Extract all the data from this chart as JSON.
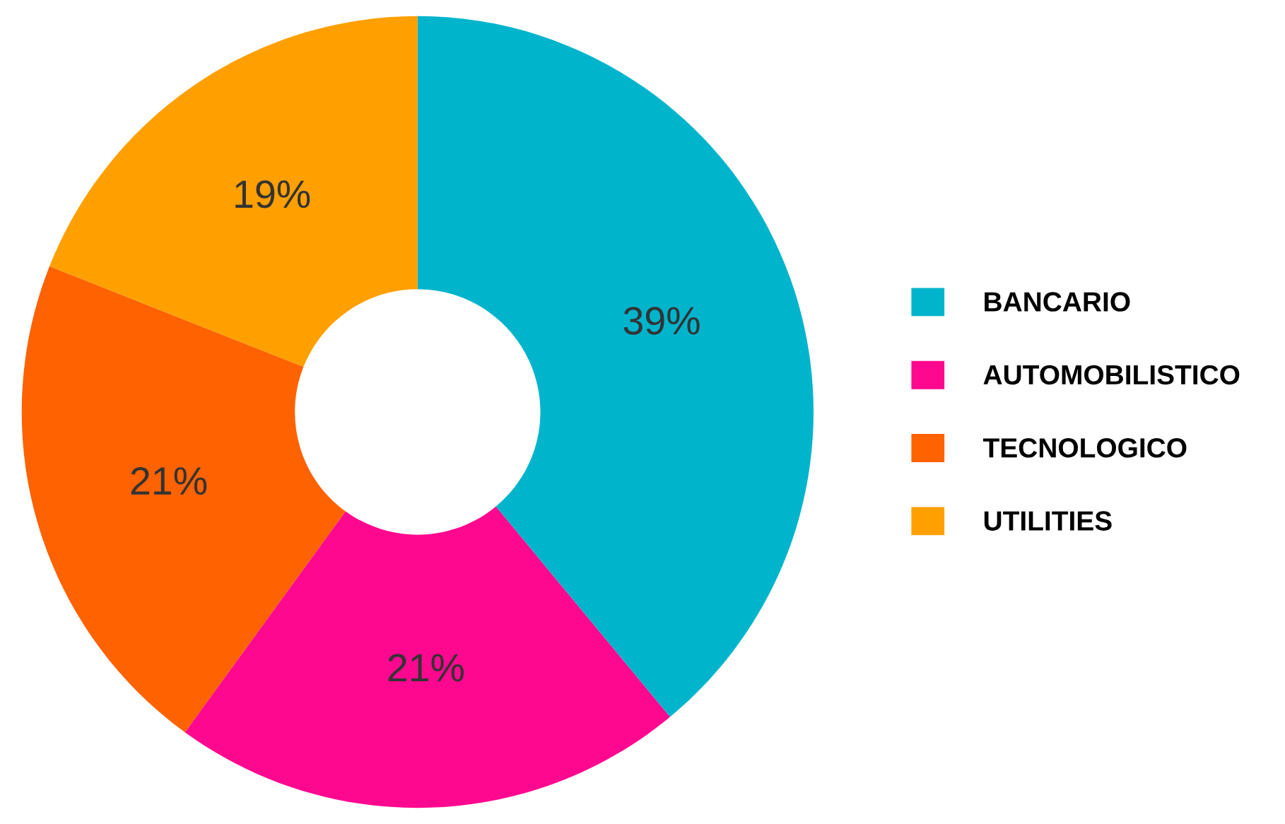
{
  "chart_data": {
    "type": "donut",
    "categories": [
      "BANCARIO",
      "AUTOMOBILISTICO",
      "TECNOLOGICO",
      "UTILITIES"
    ],
    "values": [
      39,
      21,
      21,
      19
    ],
    "value_labels": [
      "39%",
      "21%",
      "21%",
      "19%"
    ],
    "colors": [
      "#00b4cc",
      "#ff0890",
      "#ff6200",
      "#ffa000"
    ],
    "legend": "right"
  }
}
